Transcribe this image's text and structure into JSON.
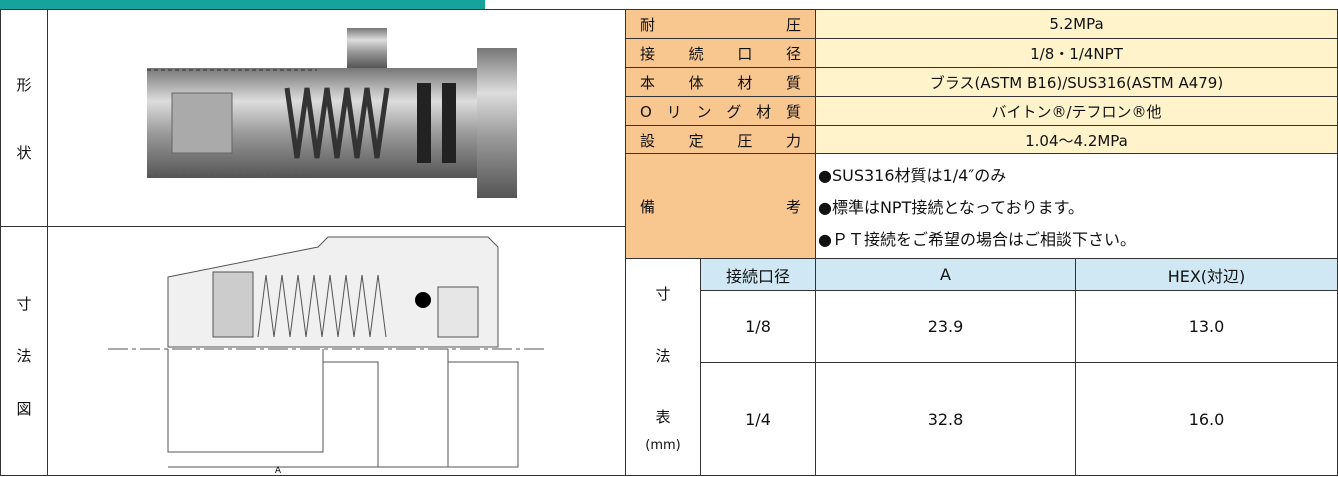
{
  "left": {
    "shape_label": [
      "形",
      "状"
    ],
    "drawing_label": [
      "寸",
      "法",
      "図"
    ],
    "dimension_mark": "A"
  },
  "specs": [
    {
      "label": "耐圧",
      "value": "5.2MPa"
    },
    {
      "label": "接続口径",
      "value": "1/8・1/4NPT"
    },
    {
      "label": "本体材質",
      "value": "ブラス(ASTM B16)/SUS316(ASTM A479)"
    },
    {
      "label": "Oリング材質",
      "value": "バイトン®/テフロン®他"
    },
    {
      "label": "設定圧力",
      "value": "1.04〜4.2MPa"
    }
  ],
  "remarks": {
    "label": "備考",
    "lines": [
      "●SUS316材質は1/4″のみ",
      "●標準はNPT接続となっております。",
      "●ＰＴ接続をご希望の場合はご相談下さい。"
    ]
  },
  "dimensions": {
    "label": [
      "寸",
      "法",
      "表",
      "(mm)"
    ],
    "header": [
      "接続口径",
      "A",
      "HEX(対辺)"
    ],
    "rows": [
      [
        "1/8",
        "23.9",
        "13.0"
      ],
      [
        "1/4",
        "32.8",
        "16.0"
      ]
    ]
  }
}
